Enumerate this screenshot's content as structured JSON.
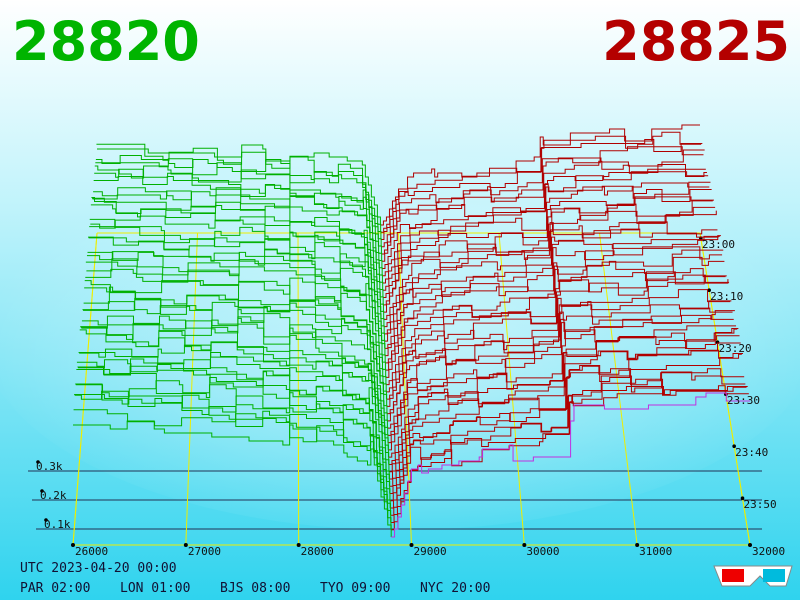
{
  "header": {
    "bid": "28820",
    "ask": "28825"
  },
  "price_axis": [
    "26000",
    "27000",
    "28000",
    "29000",
    "30000",
    "31000",
    "32000"
  ],
  "depth_axis": [
    "0.1k",
    "0.2k",
    "0.3k"
  ],
  "time_axis": [
    "23:00",
    "23:10",
    "23:20",
    "23:30",
    "23:40",
    "23:50"
  ],
  "footer": {
    "utc": "UTC 2023-04-20 00:00",
    "zones": [
      "PAR 02:00",
      "LON 01:00",
      "BJS 08:00",
      "TYO 09:00",
      "NYC 20:00"
    ]
  }
}
